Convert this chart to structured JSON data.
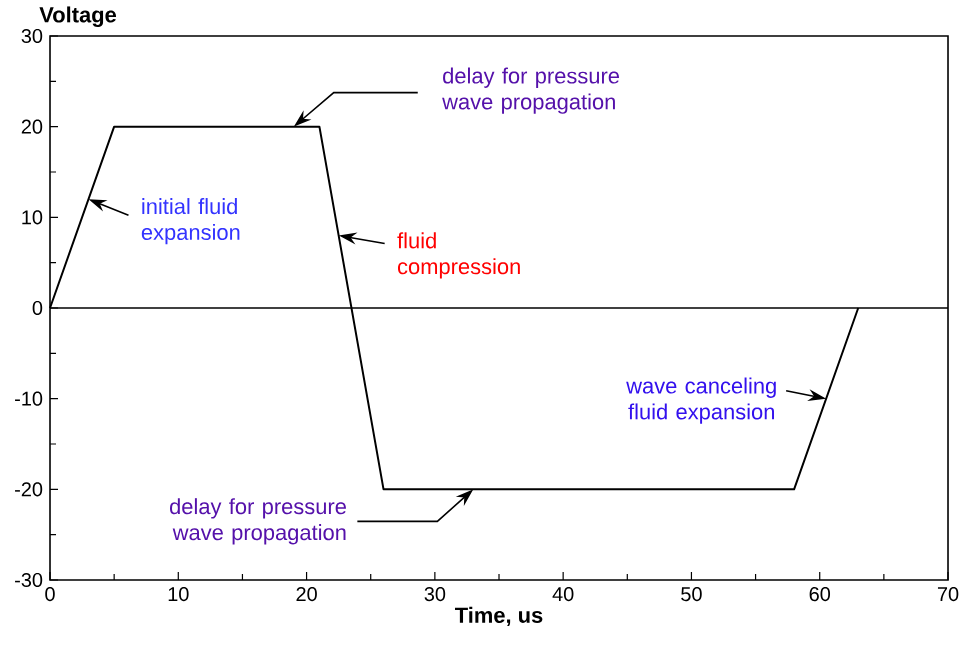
{
  "chart_data": {
    "type": "line",
    "xlabel": "Time, us",
    "ylabel": "Voltage",
    "x": [
      0,
      5,
      21,
      26,
      58,
      63
    ],
    "series": [
      {
        "color": "#000000",
        "values": [
          0,
          20,
          20,
          -20,
          -20,
          0
        ]
      }
    ],
    "xlim": [
      0,
      70
    ],
    "ylim": [
      -30,
      30
    ],
    "xticks": [
      0,
      10,
      20,
      30,
      40,
      50,
      60,
      70
    ],
    "yticks": [
      -30,
      -20,
      -10,
      0,
      10,
      20,
      30
    ],
    "ref_lines": [
      {
        "axis": "y",
        "value": 0,
        "color": "#000000"
      }
    ],
    "annotations": [
      {
        "text": "initial fluid expansion",
        "x": 3,
        "y": 12
      },
      {
        "text": "delay for pressure wave propagation",
        "x": 19,
        "y": 20
      },
      {
        "text": "fluid compression",
        "x": 22.5,
        "y": 8
      },
      {
        "text": "delay for pressure wave propagation",
        "x": 33,
        "y": -20
      },
      {
        "text": "wave canceling fluid expansion",
        "x": 60.5,
        "y": -10
      }
    ]
  }
}
